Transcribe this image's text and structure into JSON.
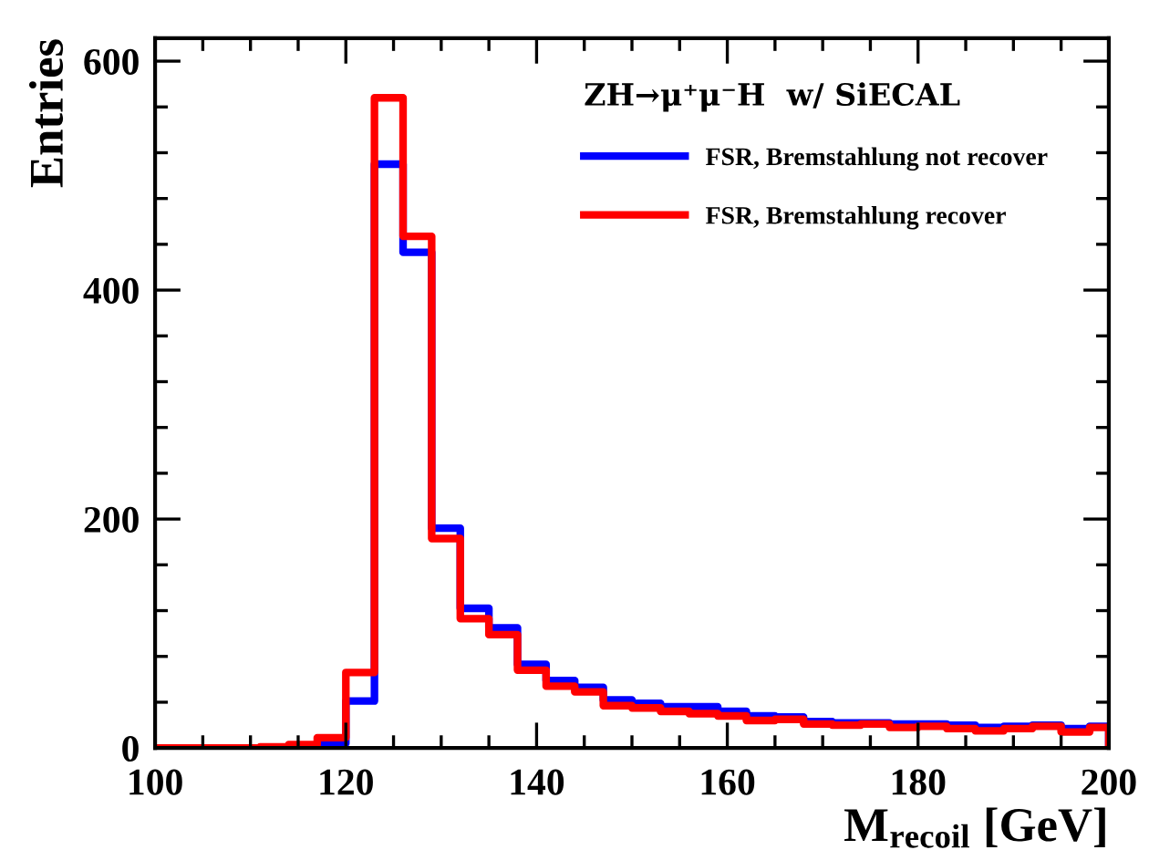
{
  "chart_data": {
    "type": "histogram",
    "xlabel": "M$_{recoil}$ [GeV]",
    "ylabel": "Entries",
    "legend_title": "ZH→μ⁺μ⁻H  w/ SiECAL",
    "bins": [
      100,
      102,
      105,
      108,
      111,
      114,
      117,
      120,
      123,
      126,
      129,
      132,
      135,
      138,
      141,
      144,
      147,
      150,
      153,
      156,
      159,
      162,
      165,
      168,
      171,
      174,
      177,
      180,
      183,
      186,
      189,
      192,
      195,
      198,
      200
    ],
    "series": [
      {
        "name": "FSR, Bremstahlung not recover",
        "color": "#0000ff",
        "values": [
          0,
          0,
          0,
          0,
          0,
          1,
          4,
          41,
          510,
          433,
          192,
          122,
          105,
          73,
          59,
          53,
          42,
          39,
          36,
          36,
          32,
          28,
          27,
          23,
          22,
          22,
          21,
          21,
          20,
          18,
          19,
          20,
          17,
          19
        ]
      },
      {
        "name": "FSR, Bremstahlung recover",
        "color": "#ff0000",
        "values": [
          0,
          0,
          0,
          0,
          1,
          3,
          9,
          66,
          568,
          447,
          183,
          113,
          99,
          68,
          54,
          49,
          37,
          35,
          32,
          30,
          28,
          24,
          25,
          21,
          20,
          21,
          18,
          19,
          17,
          15,
          17,
          19,
          14,
          18
        ]
      }
    ],
    "xlim": [
      100,
      200
    ],
    "xticks": [
      100,
      120,
      140,
      160,
      180,
      200
    ],
    "ylim": [
      0,
      620
    ],
    "yticks": [
      0,
      200,
      400,
      600
    ],
    "grid": false,
    "legend": "top right"
  }
}
